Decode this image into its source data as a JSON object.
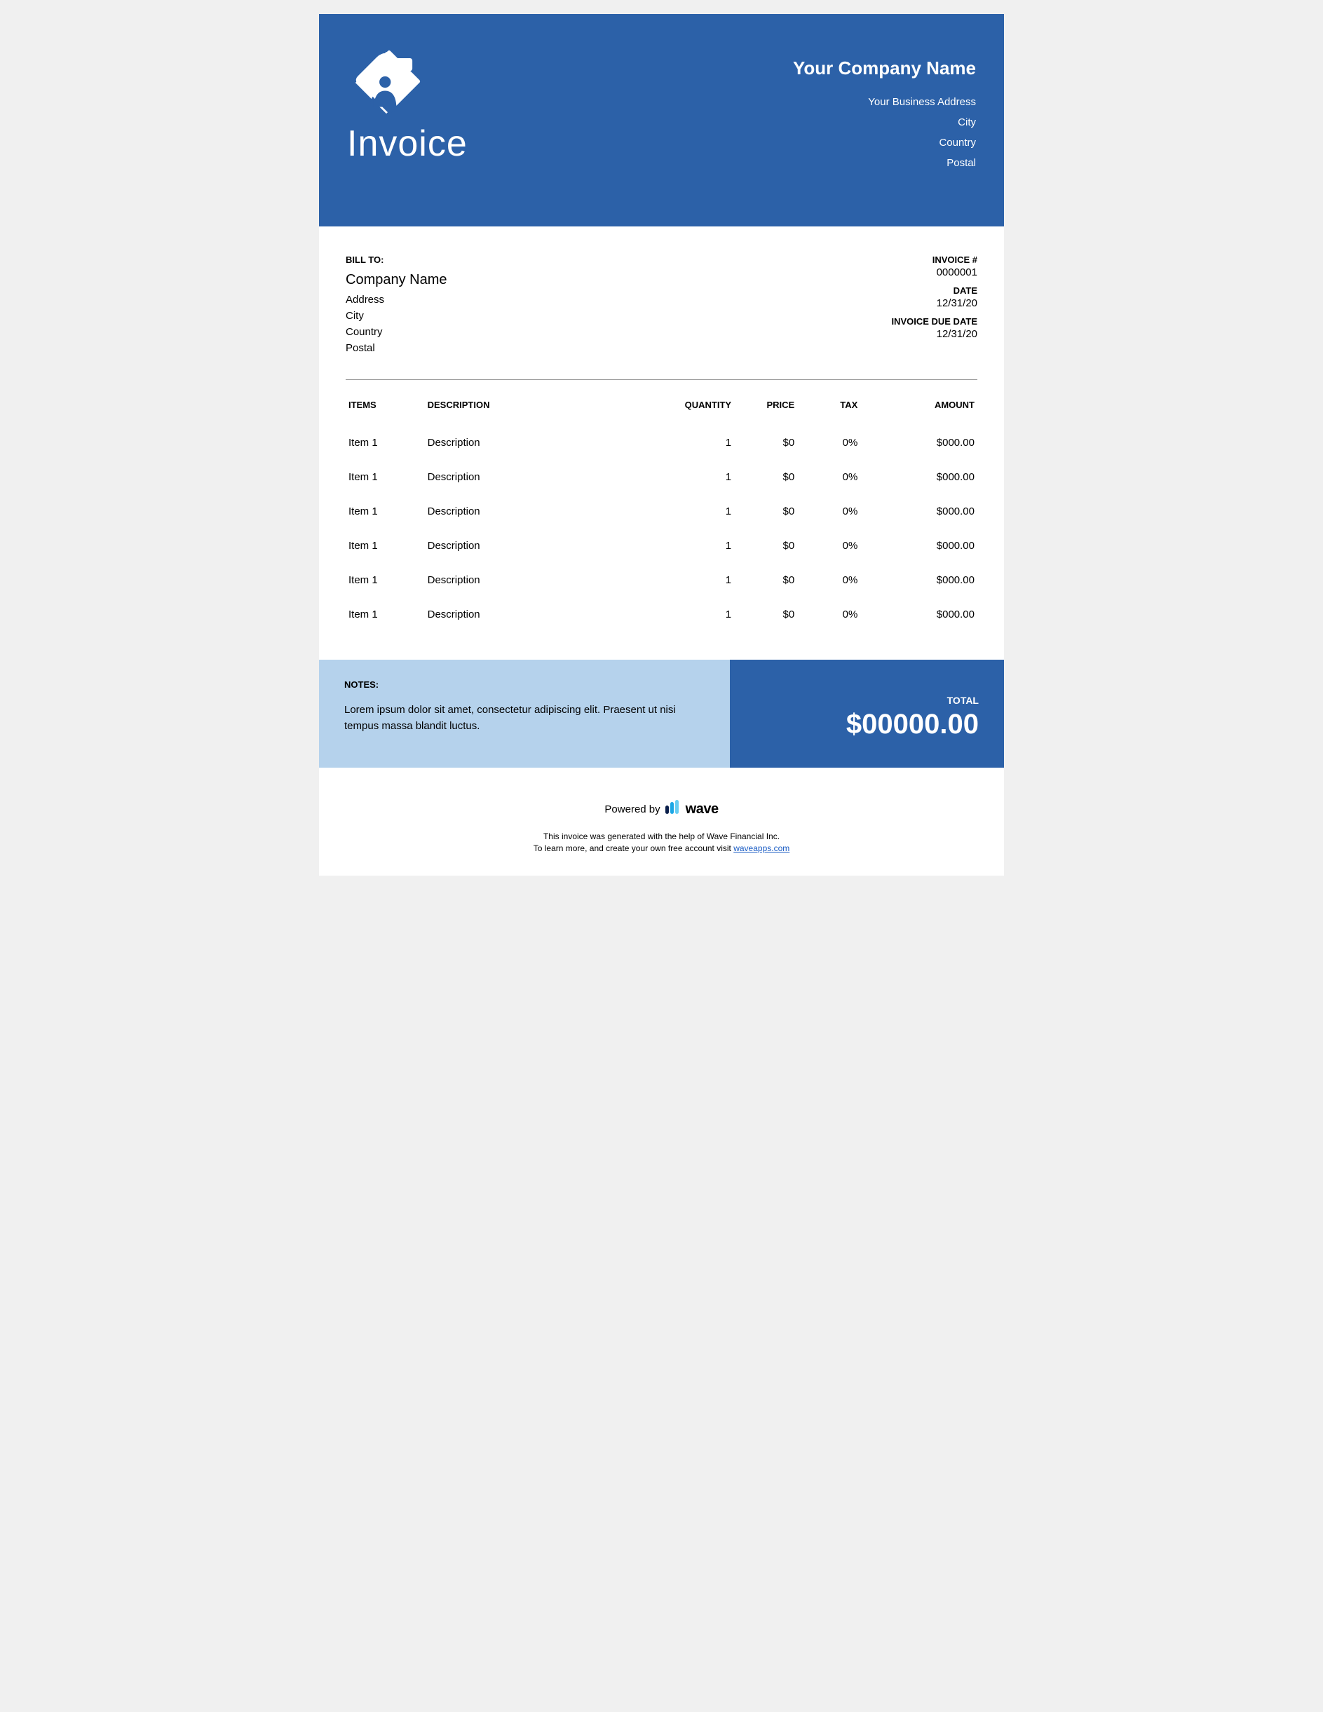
{
  "colors": {
    "primary": "#2c61a8",
    "notes_bg": "#b5d2ec",
    "page_bg": "#ffffff",
    "text": "#000000",
    "hr": "#9a9a9a",
    "wave_blue": "#1ca7e5",
    "link": "#1a5cc4"
  },
  "header": {
    "title": "Invoice",
    "company_name": "Your Company Name",
    "address": "Your Business Address",
    "city": "City",
    "country": "Country",
    "postal": "Postal"
  },
  "bill_to": {
    "label": "BILL TO:",
    "company": "Company Name",
    "address": "Address",
    "city": "City",
    "country": "Country",
    "postal": "Postal"
  },
  "invoice_meta": {
    "number_label": "INVOICE #",
    "number": "0000001",
    "date_label": "DATE",
    "date": "12/31/20",
    "due_label": "INVOICE DUE DATE",
    "due": "12/31/20"
  },
  "table": {
    "columns": {
      "items": "ITEMS",
      "description": "DESCRIPTION",
      "quantity": "QUANTITY",
      "price": "PRICE",
      "tax": "TAX",
      "amount": "AMOUNT"
    },
    "rows": [
      {
        "item": "Item 1",
        "description": "Description",
        "quantity": "1",
        "price": "$0",
        "tax": "0%",
        "amount": "$000.00"
      },
      {
        "item": "Item 1",
        "description": "Description",
        "quantity": "1",
        "price": "$0",
        "tax": "0%",
        "amount": "$000.00"
      },
      {
        "item": "Item 1",
        "description": "Description",
        "quantity": "1",
        "price": "$0",
        "tax": "0%",
        "amount": "$000.00"
      },
      {
        "item": "Item 1",
        "description": "Description",
        "quantity": "1",
        "price": "$0",
        "tax": "0%",
        "amount": "$000.00"
      },
      {
        "item": "Item 1",
        "description": "Description",
        "quantity": "1",
        "price": "$0",
        "tax": "0%",
        "amount": "$000.00"
      },
      {
        "item": "Item 1",
        "description": "Description",
        "quantity": "1",
        "price": "$0",
        "tax": "0%",
        "amount": "$000.00"
      }
    ]
  },
  "notes": {
    "label": "NOTES:",
    "text": "Lorem ipsum dolor sit amet, consectetur adipiscing elit. Praesent ut nisi tempus massa blandit luctus."
  },
  "total": {
    "label": "TOTAL",
    "amount": "$00000.00"
  },
  "footer": {
    "powered_by": "Powered by",
    "brand": "wave",
    "line1": "This invoice was generated with the help of Wave Financial Inc.",
    "line2_prefix": "To learn more, and create your own free account visit ",
    "link_text": "waveapps.com"
  }
}
